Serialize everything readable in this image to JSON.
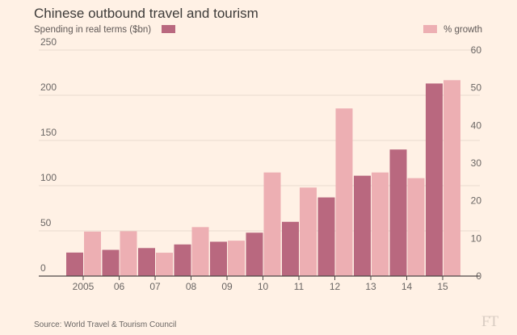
{
  "chart_data": {
    "type": "bar",
    "title": "Chinese outbound travel and tourism",
    "categories": [
      "2005",
      "06",
      "07",
      "08",
      "09",
      "10",
      "11",
      "12",
      "13",
      "14",
      "15"
    ],
    "series": [
      {
        "name": "Spending in real terms ($bn)",
        "axis": "left",
        "color": "#b9687f",
        "values": [
          26,
          29,
          31,
          35,
          38,
          48,
          60,
          87,
          111,
          140,
          213
        ]
      },
      {
        "name": "% growth",
        "axis": "right",
        "color": "#edafb3",
        "values": [
          11.8,
          11.9,
          6.2,
          13,
          9.4,
          27.5,
          23.5,
          44.5,
          27.5,
          26,
          52
        ]
      }
    ],
    "left_axis": {
      "ylim": [
        0,
        250
      ],
      "ticks": [
        "0",
        "50",
        "100",
        "150",
        "200",
        "250"
      ]
    },
    "right_axis": {
      "ylim": [
        0,
        60
      ],
      "ticks": [
        "0",
        "10",
        "20",
        "30",
        "40",
        "50",
        "60"
      ]
    },
    "source": "Source: World Travel & Tourism Council",
    "logo": "FT",
    "colors": {
      "background": "#fff1e5",
      "axis_line": "#4d4847",
      "grid": "#e9dbcf"
    }
  }
}
